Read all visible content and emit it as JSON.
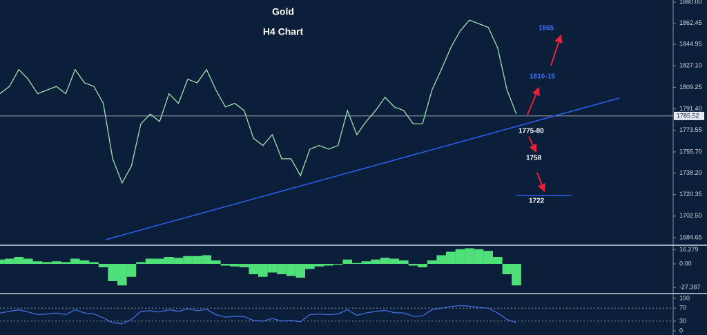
{
  "chart_data": [
    {
      "type": "line",
      "title": "Gold",
      "subtitle": "H4 Chart",
      "color": "#9fe3b0",
      "values": [
        1804,
        1810,
        1824,
        1816,
        1804,
        1807,
        1810,
        1804,
        1824,
        1813,
        1810,
        1796,
        1750,
        1730,
        1744,
        1779,
        1787,
        1781,
        1804,
        1796,
        1816,
        1813,
        1824,
        1807,
        1793,
        1796,
        1790,
        1767,
        1761,
        1770,
        1750,
        1750,
        1736,
        1758,
        1761,
        1758,
        1761,
        1790,
        1770,
        1781,
        1790,
        1801,
        1793,
        1790,
        1779,
        1779,
        1807,
        1824,
        1842,
        1856,
        1865,
        1862,
        1859,
        1842,
        1807,
        1787
      ],
      "ylim": [
        1678.9,
        1881.7
      ],
      "yticks": [
        {
          "value": 1880,
          "label": "1880.00"
        },
        1862.45,
        1844.95,
        {
          "value": 1827.1,
          "label": "1827.10"
        },
        1809.25,
        {
          "value": 1791.4,
          "label": "1791.40"
        },
        1773.55,
        {
          "value": 1755.7,
          "label": "1755.70"
        },
        {
          "value": 1738.2,
          "label": "1738.20"
        },
        1720.35,
        {
          "value": 1702.5,
          "label": "1702.50"
        },
        1684.65
      ],
      "last_price": 1785.52,
      "annotations": [
        "1865",
        "1810-15",
        "1775-80",
        "1758",
        "1722"
      ]
    },
    {
      "type": "bar",
      "color": "#4fe07a",
      "values": [
        5,
        6,
        8,
        6,
        3,
        2,
        3,
        2,
        6,
        4,
        2,
        -4,
        -20,
        -25,
        -15,
        2,
        6,
        6,
        8,
        7,
        9,
        9,
        10,
        4,
        -2,
        -3,
        -4,
        -12,
        -15,
        -10,
        -12,
        -14,
        -16,
        -6,
        -3,
        -2,
        -1,
        5,
        1,
        3,
        5,
        7,
        6,
        4,
        -2,
        -4,
        4,
        10,
        14,
        17,
        18,
        17,
        15,
        8,
        -12,
        -25
      ],
      "ylim": [
        -33.6,
        20.8
      ],
      "yticks": [
        16.279,
        {
          "value": 0,
          "label": "0.00"
        },
        -27.387
      ]
    },
    {
      "type": "line",
      "color": "#3f6fe0",
      "values": [
        55,
        60,
        65,
        58,
        50,
        52,
        55,
        50,
        65,
        55,
        52,
        40,
        25,
        22,
        35,
        60,
        62,
        58,
        65,
        60,
        68,
        62,
        66,
        50,
        42,
        45,
        44,
        32,
        30,
        38,
        30,
        32,
        28,
        50,
        52,
        50,
        52,
        65,
        48,
        55,
        60,
        63,
        56,
        55,
        45,
        46,
        65,
        70,
        75,
        78,
        76,
        72,
        70,
        55,
        35,
        25
      ],
      "ylim": [
        -12.8,
        112.8
      ],
      "yticks": [
        100,
        70,
        30,
        0
      ]
    }
  ]
}
